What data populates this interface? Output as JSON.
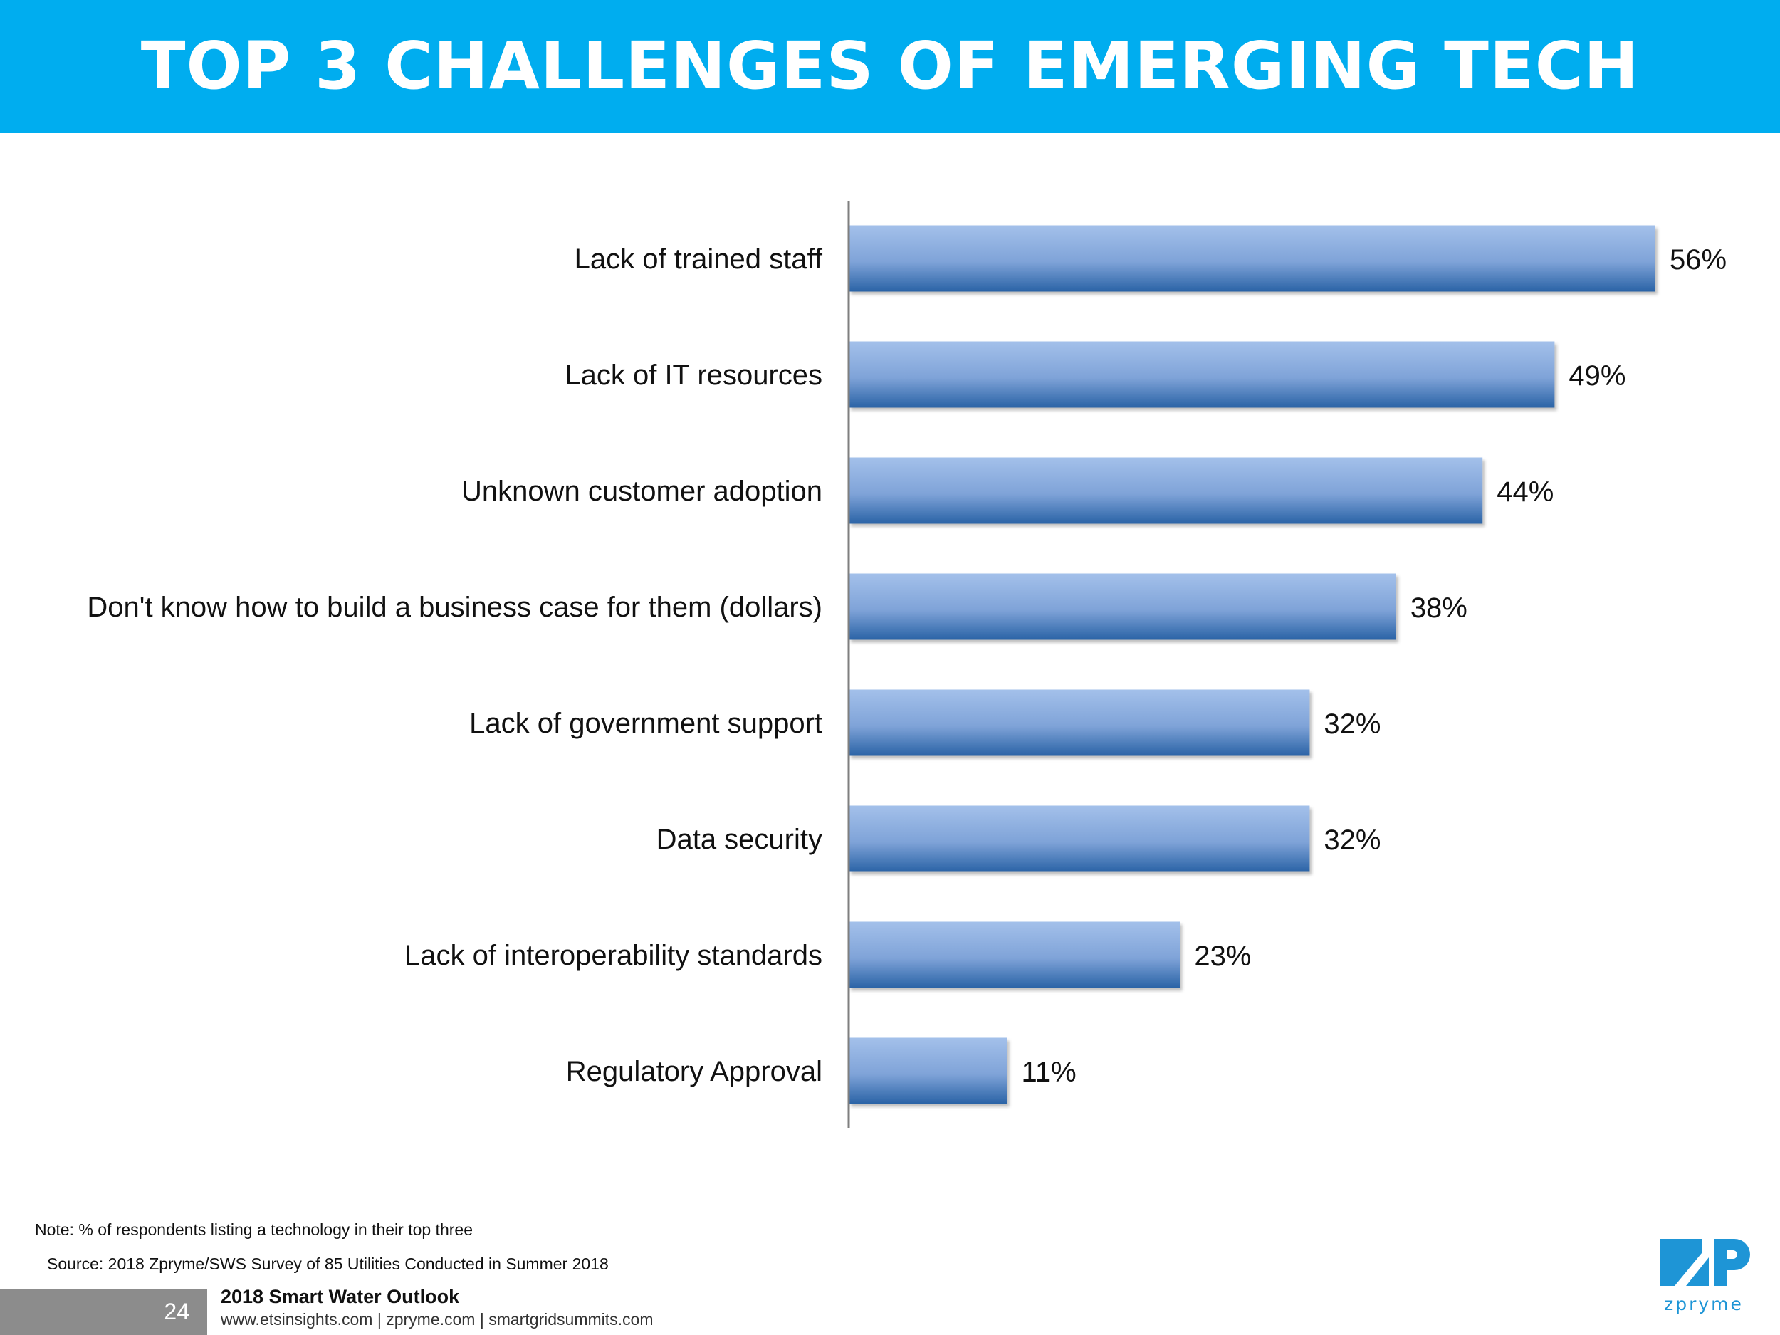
{
  "header": {
    "title": "TOP 3 CHALLENGES OF EMERGING TECH"
  },
  "chart_data": {
    "type": "bar",
    "orientation": "horizontal",
    "categories": [
      "Lack of trained staff",
      "Lack of IT resources",
      "Unknown customer adoption",
      "Don't know how to build a business case for them (dollars)",
      "Lack of government support",
      "Data security",
      "Lack of interoperability standards",
      "Regulatory Approval"
    ],
    "values": [
      56,
      49,
      44,
      38,
      32,
      32,
      23,
      11
    ],
    "value_labels": [
      "56%",
      "49%",
      "44%",
      "38%",
      "32%",
      "32%",
      "23%",
      "11%"
    ],
    "unit": "%",
    "xlim": [
      0,
      56
    ],
    "grid": false,
    "bar_color_light": "#a3c0ea",
    "bar_color_dark": "#2a63a6"
  },
  "notes": {
    "note": "Note: % of respondents listing a technology in their top three",
    "source": "Source: 2018 Zpryme/SWS Survey of 85 Utilities Conducted in Summer 2018"
  },
  "footer": {
    "page_number": "24",
    "title": "2018 Smart Water Outlook",
    "links": "www.etsinsights.com | zpryme.com | smartgridsummits.com"
  },
  "logo": {
    "icon": "zp-logo-icon",
    "text": "zpryme",
    "color": "#1e95d6"
  }
}
